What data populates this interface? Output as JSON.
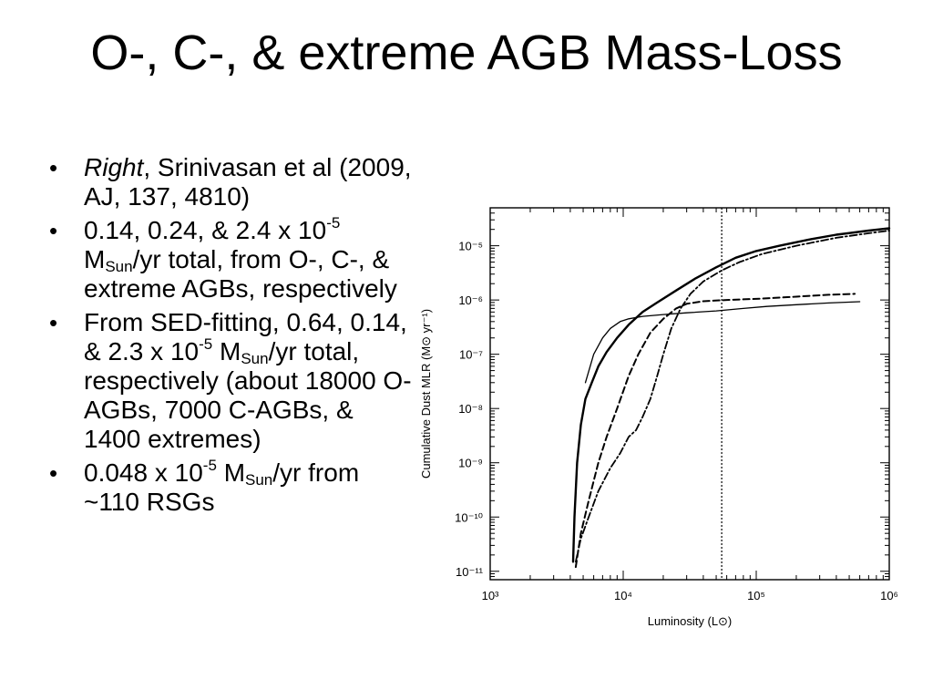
{
  "slide": {
    "title": "O-, C-, & extreme AGB Mass-Loss"
  },
  "bullets": [
    {
      "italic": "Right",
      "text": ", Srinivasan et al (2009, AJ, 137, 4810)"
    },
    {
      "before_exp": "0.14, 0.24, & 2.4 x 10",
      "exp": "-5",
      "unit_base": "M",
      "unit_sub": "Sun",
      "after": "/yr total, from O-, C-, & extreme AGBs, respectively"
    },
    {
      "before_exp": "From SED-fitting, 0.64, 0.14, & 2.3 x 10",
      "exp": "-5",
      "unit_base": "M",
      "unit_sub": "Sun",
      "after": "/yr total, respectively (about 18000 O-AGBs, 7000 C-AGBs, & 1400 extremes)"
    },
    {
      "before_exp": "0.048 x 10",
      "exp": "-5",
      "unit_base": "M",
      "unit_sub": "Sun",
      "after": "/yr from ~110 RSGs"
    }
  ],
  "chart_data": {
    "type": "line",
    "xlabel": "Luminosity (L⊙)",
    "ylabel": "Cumulative Dust MLR (M⊙ yr⁻¹)",
    "xscale": "log",
    "yscale": "log",
    "xlim": [
      1000,
      1000000
    ],
    "ylim": [
      7e-12,
      5e-05
    ],
    "x_ticks": [
      {
        "value": 1000,
        "label": "10³"
      },
      {
        "value": 10000,
        "label": "10⁴"
      },
      {
        "value": 100000,
        "label": "10⁵"
      },
      {
        "value": 1000000,
        "label": "10⁶"
      }
    ],
    "y_ticks": [
      {
        "value": 1e-11,
        "label": "10⁻¹¹"
      },
      {
        "value": 1e-10,
        "label": "10⁻¹⁰"
      },
      {
        "value": 1e-09,
        "label": "10⁻⁹"
      },
      {
        "value": 1e-08,
        "label": "10⁻⁸"
      },
      {
        "value": 1e-07,
        "label": "10⁻⁷"
      },
      {
        "value": 1e-06,
        "label": "10⁻⁶"
      },
      {
        "value": 1e-05,
        "label": "10⁻⁵"
      }
    ],
    "vline": {
      "x": 55000,
      "style": "dotted"
    },
    "series": [
      {
        "style": "solid-thick",
        "x": [
          4200,
          4300,
          4500,
          4800,
          5200,
          5800,
          6500,
          7500,
          9000,
          11000,
          14000,
          18000,
          25000,
          35000,
          50000,
          70000,
          100000,
          150000,
          250000,
          400000,
          700000,
          1000000
        ],
        "y": [
          1.5e-11,
          1e-10,
          1e-09,
          5e-09,
          1.5e-08,
          3e-08,
          6e-08,
          1.1e-07,
          2e-07,
          3.5e-07,
          6e-07,
          9e-07,
          1.5e-06,
          2.5e-06,
          4e-06,
          6e-06,
          8e-06,
          1e-05,
          1.3e-05,
          1.6e-05,
          1.9e-05,
          2.1e-05
        ]
      },
      {
        "style": "solid-thin",
        "x": [
          5200,
          6000,
          7000,
          8000,
          9500,
          11000,
          14000,
          20000,
          30000,
          50000,
          80000,
          120000,
          200000,
          350000,
          600000
        ],
        "y": [
          3e-08,
          1e-07,
          2e-07,
          3e-07,
          4e-07,
          4.5e-07,
          5e-07,
          5.4e-07,
          5.8e-07,
          6.3e-07,
          7e-07,
          7.6e-07,
          8.2e-07,
          8.8e-07,
          9.3e-07
        ]
      },
      {
        "style": "dashed",
        "x": [
          4400,
          4800,
          5500,
          6500,
          7500,
          9000,
          11000,
          13000,
          16000,
          20000,
          25000,
          30000,
          40000,
          60000,
          100000,
          200000,
          350000,
          550000
        ],
        "y": [
          1.2e-11,
          5e-11,
          2e-10,
          1e-09,
          3e-09,
          1e-08,
          4e-08,
          1e-07,
          2.5e-07,
          4.5e-07,
          7e-07,
          8.5e-07,
          9.5e-07,
          1e-06,
          1.05e-06,
          1.15e-06,
          1.25e-06,
          1.3e-06
        ]
      },
      {
        "style": "dash-dot",
        "x": [
          4400,
          4800,
          5500,
          6500,
          8000,
          9500,
          11000,
          12500,
          14000,
          16000,
          18000,
          20000,
          23000,
          27000,
          32000,
          40000,
          55000,
          75000,
          110000,
          200000,
          400000,
          700000,
          1000000
        ],
        "y": [
          1.5e-11,
          4e-11,
          1e-10,
          3e-10,
          8e-10,
          1.5e-09,
          3e-09,
          4e-09,
          7e-09,
          1.5e-08,
          4e-08,
          1e-07,
          3e-07,
          7e-07,
          1.3e-06,
          2.2e-06,
          3.5e-06,
          5e-06,
          7e-06,
          1e-05,
          1.4e-05,
          1.7e-05,
          1.9e-05
        ]
      }
    ]
  }
}
